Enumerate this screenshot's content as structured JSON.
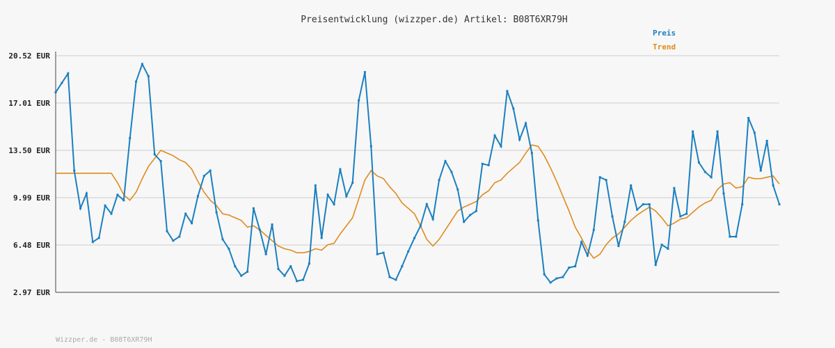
{
  "chart_data": {
    "type": "line",
    "title": "Preisentwicklung (wizzper.de) Artikel: B08T6XR79H",
    "footer": "Wizzper.de - B08T6XR79H",
    "ylim": [
      2.97,
      20.52
    ],
    "y_ticks": [
      "20.52 EUR",
      "17.01 EUR",
      "13.50 EUR",
      "9.99 EUR",
      "6.48 EUR",
      "2.97 EUR"
    ],
    "y_tick_values": [
      20.52,
      17.01,
      13.5,
      9.99,
      6.48,
      2.97
    ],
    "grid": true,
    "legend_position": "top-right",
    "colors": {
      "preis": "#1a7fbf",
      "trend": "#e08a1e"
    },
    "series": [
      {
        "name": "Preis",
        "values": [
          17.8,
          18.5,
          19.2,
          12.0,
          9.2,
          10.3,
          6.7,
          7.0,
          9.4,
          8.8,
          10.2,
          9.8,
          14.4,
          18.6,
          19.9,
          19.0,
          13.2,
          12.7,
          7.5,
          6.8,
          7.1,
          8.8,
          8.1,
          10.1,
          11.6,
          12.0,
          8.9,
          6.9,
          6.2,
          4.9,
          4.2,
          4.5,
          9.2,
          7.6,
          5.8,
          8.0,
          4.7,
          4.2,
          4.9,
          3.8,
          3.9,
          5.1,
          10.9,
          7.0,
          10.2,
          9.5,
          12.1,
          10.1,
          11.1,
          17.2,
          19.3,
          13.8,
          5.8,
          5.9,
          4.1,
          3.9,
          4.9,
          6.0,
          7.0,
          7.9,
          9.5,
          8.4,
          11.3,
          12.7,
          11.9,
          10.6,
          8.2,
          8.7,
          9.0,
          12.5,
          12.4,
          14.6,
          13.8,
          17.9,
          16.6,
          14.3,
          15.5,
          13.3,
          8.3,
          4.3,
          3.7,
          4.0,
          4.1,
          4.8,
          4.9,
          6.7,
          5.7,
          7.6,
          11.5,
          11.3,
          8.6,
          6.4,
          8.2,
          10.9,
          9.1,
          9.5,
          9.5,
          5.0,
          6.5,
          6.2,
          10.7,
          8.6,
          8.8,
          14.9,
          12.6,
          11.9,
          11.5,
          14.9,
          10.3,
          7.1,
          7.1,
          9.5,
          15.9,
          14.8,
          12.0,
          14.2,
          10.9,
          9.5
        ]
      },
      {
        "name": "Trend",
        "values": [
          11.8,
          11.8,
          11.8,
          11.8,
          11.8,
          11.8,
          11.8,
          11.8,
          11.8,
          11.8,
          11.1,
          10.2,
          9.8,
          10.4,
          11.4,
          12.3,
          12.9,
          13.5,
          13.3,
          13.1,
          12.8,
          12.6,
          12.1,
          11.2,
          10.4,
          9.8,
          9.4,
          8.8,
          8.7,
          8.5,
          8.3,
          7.8,
          7.9,
          7.6,
          7.2,
          6.8,
          6.4,
          6.2,
          6.1,
          5.9,
          5.9,
          6.0,
          6.2,
          6.1,
          6.5,
          6.6,
          7.3,
          7.9,
          8.5,
          9.9,
          11.3,
          12.0,
          11.6,
          11.4,
          10.8,
          10.3,
          9.6,
          9.2,
          8.8,
          7.9,
          6.9,
          6.4,
          6.9,
          7.6,
          8.3,
          9.0,
          9.3,
          9.5,
          9.7,
          10.2,
          10.5,
          11.1,
          11.3,
          11.8,
          12.2,
          12.6,
          13.3,
          13.9,
          13.8,
          13.1,
          12.2,
          11.2,
          10.1,
          9.0,
          7.8,
          7.0,
          6.1,
          5.5,
          5.8,
          6.5,
          7.0,
          7.3,
          7.8,
          8.3,
          8.7,
          9.0,
          9.3,
          9.0,
          8.5,
          7.9,
          8.1,
          8.4,
          8.5,
          8.9,
          9.3,
          9.6,
          9.8,
          10.6,
          11.0,
          11.1,
          10.7,
          10.8,
          11.5,
          11.4,
          11.4,
          11.5,
          11.6,
          11.0
        ]
      }
    ]
  }
}
